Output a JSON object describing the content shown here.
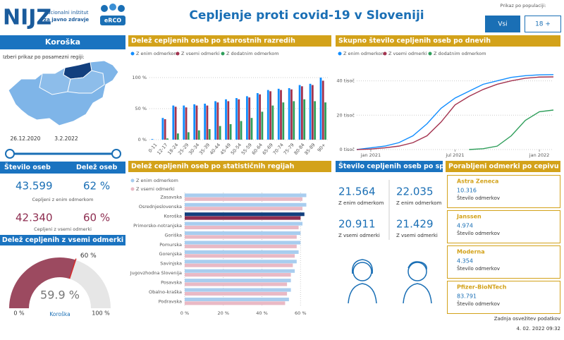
{
  "header": {
    "logo": "NIJZ",
    "logo_line1": "Nacionalni inštitut",
    "logo_line2": "za javno zdravje",
    "badge": "eRCO",
    "title": "Cepljenje proti covid-19 v Sloveniji",
    "population_label": "Prikaz po populaciji:",
    "buttons": [
      "Vsi",
      "18 +"
    ]
  },
  "sidebar": {
    "region": "Koroška",
    "prompt": "Izberi prikaz po posamezni regiji:",
    "date_start": "26.12.2020",
    "date_end": "3.2.2022",
    "col_count": "Število oseb",
    "col_share": "Delež oseb",
    "stats": [
      {
        "count": "43.599",
        "share": "62 %",
        "label": "Cepljeni z enim odmerkom"
      },
      {
        "count": "42.340",
        "share": "60 %",
        "label": "Cepljeni z vsemi odmerki"
      }
    ]
  },
  "chart_data": [
    {
      "type": "bar",
      "title": "Delež cepljenih oseb po starostnih razredih",
      "categories": [
        "0-11",
        "12-17",
        "18-24",
        "25-29",
        "30-34",
        "35-39",
        "40-44",
        "45-49",
        "50-54",
        "55-59",
        "60-64",
        "65-69",
        "70-74",
        "75-79",
        "80-84",
        "85-89",
        "90+"
      ],
      "series": [
        {
          "name": "Z enim odmerkom",
          "color": "#118dff",
          "values": [
            1,
            35,
            55,
            55,
            57,
            58,
            62,
            65,
            67,
            70,
            75,
            80,
            82,
            83,
            88,
            90,
            100
          ]
        },
        {
          "name": "Z vsemi odmerki",
          "color": "#a3334f",
          "values": [
            0,
            33,
            53,
            52,
            55,
            55,
            60,
            62,
            65,
            68,
            73,
            78,
            80,
            81,
            86,
            88,
            95
          ]
        },
        {
          "name": "Z dodatnim odmerkom",
          "color": "#2e9e5a",
          "values": [
            0,
            2,
            10,
            12,
            15,
            17,
            22,
            25,
            30,
            35,
            45,
            55,
            60,
            62,
            65,
            62,
            60
          ]
        }
      ],
      "ylim": [
        0,
        100
      ],
      "yticks": [
        {
          "value": 0,
          "label": "0 %"
        },
        {
          "value": 50,
          "label": "50 %"
        },
        {
          "value": 100,
          "label": "100 %"
        }
      ],
      "grid": true
    },
    {
      "type": "line",
      "title": "Skupno število cepljenih oseb po dnevih",
      "x": [
        "2020-12",
        "2021-01",
        "2021-02",
        "2021-03",
        "2021-04",
        "2021-05",
        "2021-06",
        "2021-07",
        "2021-08",
        "2021-09",
        "2021-10",
        "2021-11",
        "2021-12",
        "2022-01",
        "2022-02"
      ],
      "series": [
        {
          "name": "Z enim odmerkom",
          "color": "#118dff",
          "values": [
            0,
            1,
            2,
            4,
            8,
            15,
            24,
            30,
            34,
            38,
            40,
            42,
            43,
            43.5,
            43.6
          ]
        },
        {
          "name": "Z vsemi odmerki",
          "color": "#a3334f",
          "values": [
            0,
            0.3,
            1,
            2,
            4,
            8,
            16,
            26,
            31,
            35,
            38,
            40,
            41.5,
            42.2,
            42.3
          ]
        },
        {
          "name": "Z dodatnim odmerkom",
          "color": "#2e9e5a",
          "values": [
            null,
            null,
            null,
            null,
            null,
            null,
            null,
            null,
            0,
            0.5,
            2,
            8,
            17,
            22,
            23
          ]
        }
      ],
      "ylim": [
        0,
        46
      ],
      "yticks": [
        {
          "value": 0,
          "label": "0 tisoč"
        },
        {
          "value": 20,
          "label": "20 tisoč"
        },
        {
          "value": 40,
          "label": "40 tisoč"
        }
      ],
      "xticks": [
        {
          "value": "2021-01",
          "label": "jan 2021"
        },
        {
          "value": "2021-07",
          "label": "jul 2021"
        },
        {
          "value": "2022-01",
          "label": "jan 2022"
        }
      ],
      "grid": true
    },
    {
      "type": "hbar",
      "title": "Delež cepljenih oseb po statističnih regijah",
      "categories": [
        "Zasavska",
        "Osrednjeslovenska",
        "Koroška",
        "Primorsko-notranjska",
        "Goriška",
        "Pomurska",
        "Gorenjska",
        "Savinjska",
        "Jugovzhodna Slovenija",
        "Posavska",
        "Obalno-kraška",
        "Podravska"
      ],
      "highlight": "Koroška",
      "series": [
        {
          "name": "Z enim odmerkom",
          "color": "#a8cdef",
          "highlight_color": "#123f7e",
          "values": [
            63,
            63,
            62,
            61,
            60,
            60,
            59,
            58,
            57,
            55,
            55,
            54
          ]
        },
        {
          "name": "Z vsemi odmerki",
          "color": "#e9b9c5",
          "highlight_color": "#8e2d50",
          "values": [
            61,
            61,
            60,
            59,
            58,
            58,
            57,
            56,
            55,
            53,
            53,
            52
          ]
        }
      ],
      "xlim": [
        0,
        65
      ],
      "xticks": [
        {
          "value": 0,
          "label": "0 %"
        },
        {
          "value": 20,
          "label": "20 %"
        },
        {
          "value": 40,
          "label": "40 %"
        },
        {
          "value": 60,
          "label": "60 %"
        }
      ],
      "grid": true
    },
    {
      "type": "gauge",
      "title": "Delež cepljenih z vsemi odmerki",
      "label": "Koroška",
      "value": 59.9,
      "value_label": "59.9 %",
      "target": 60,
      "target_label": "60 %",
      "lim": [
        0,
        100
      ],
      "ticks": [
        {
          "value": 0,
          "label": "0 %"
        },
        {
          "value": 100,
          "label": "100 %"
        }
      ],
      "color": "#9c4a60",
      "track_color": "#e6e6e6"
    }
  ],
  "gender": {
    "title": "Število cepljenih oseb po spolu",
    "women": {
      "one": "21.564",
      "one_label": "Z enim odmerkom",
      "all": "20.911",
      "all_label": "Z vsemi odmerki"
    },
    "men": {
      "one": "22.035",
      "one_label": "Z enim odmerkom",
      "all": "21.429",
      "all_label": "Z vsemi odmerki"
    }
  },
  "vaccines": {
    "title": "Porabljeni odmerki po cepivu",
    "items": [
      {
        "name": "Astra Zeneca",
        "value": "10.316",
        "label": "Število odmerkov"
      },
      {
        "name": "Janssen",
        "value": "4.974",
        "label": "Število odmerkov"
      },
      {
        "name": "Moderna",
        "value": "4.354",
        "label": "Število odmerkov"
      },
      {
        "name": "Pfizer-BioNTech",
        "value": "83.791",
        "label": "Število odmerkov"
      }
    ]
  },
  "footer": {
    "label": "Zadnja osvežitev podatkov",
    "timestamp": "4. 02. 2022 09:32"
  }
}
